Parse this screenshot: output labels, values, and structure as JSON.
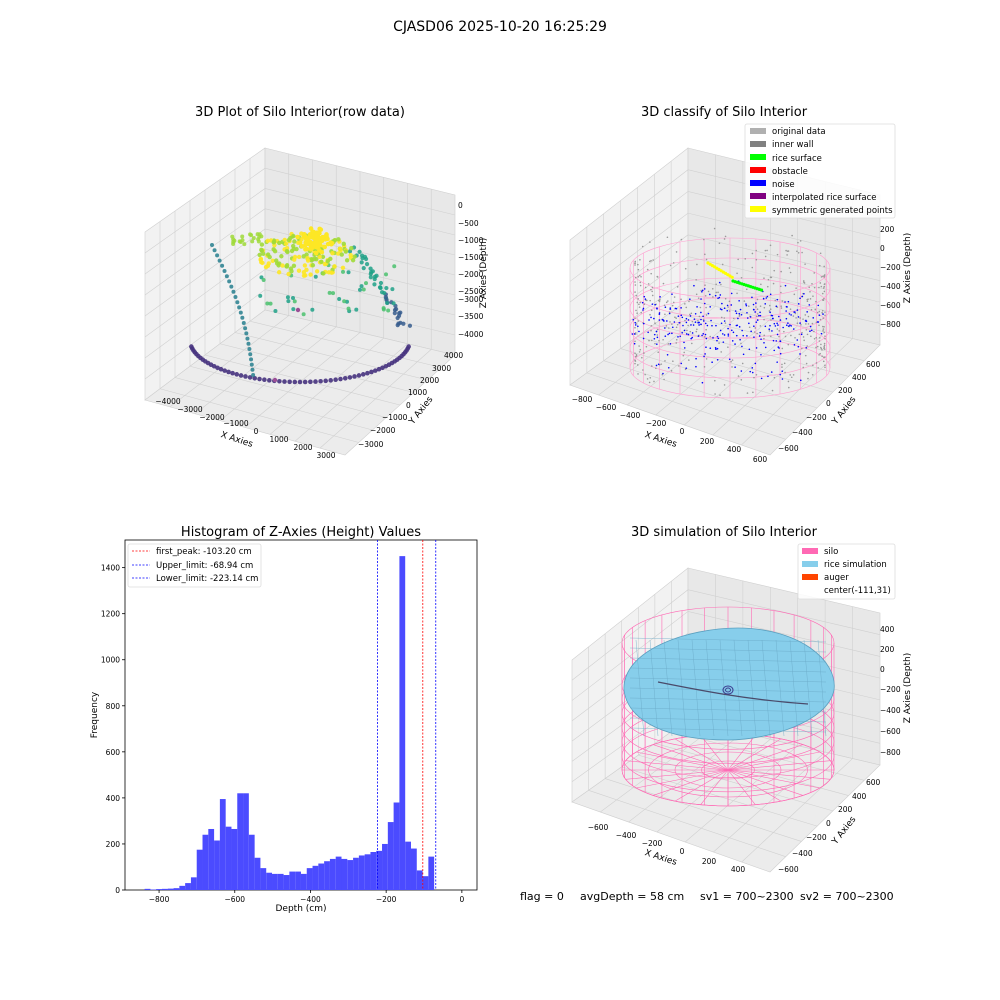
{
  "figure": {
    "suptitle": "CJASD06 2025-10-20 16:25:29",
    "status": {
      "flag": "flag = 0",
      "avg_depth": "avgDepth = 58 cm",
      "sv1": "sv1 = 700~2300",
      "sv2": "sv2 = 700~2300"
    }
  },
  "plots": {
    "raw": {
      "title": "3D Plot of Silo Interior(row data)",
      "xlabel": "X Axies",
      "ylabel": "Y Axies",
      "zlabel": "Z Axies (Depth)",
      "xticks": [
        "−4000",
        "−3000",
        "−2000",
        "−1000",
        "0",
        "1000",
        "2000",
        "3000"
      ],
      "yticks": [
        "4000",
        "3000",
        "2000",
        "1000",
        "0",
        "−1000",
        "−2000",
        "−3000"
      ],
      "zticks": [
        "0",
        "−500",
        "−1000",
        "−1500",
        "−2000",
        "−2500",
        "−3000",
        "−3500",
        "−4000"
      ]
    },
    "classify": {
      "title": "3D classify of Silo Interior",
      "xlabel": "X Axies",
      "ylabel": "Y Axies",
      "zlabel": "Z Axies (Depth)",
      "xticks": [
        "−800",
        "−600",
        "−400",
        "−200",
        "0",
        "200",
        "400",
        "600"
      ],
      "yticks": [
        "600",
        "400",
        "200",
        "0",
        "−200",
        "−400",
        "−600"
      ],
      "zticks": [
        "200",
        "0",
        "−200",
        "−400",
        "−600",
        "−800"
      ],
      "legend": [
        {
          "label": "original data",
          "color": "#b0b0b0"
        },
        {
          "label": "inner wall",
          "color": "#808080"
        },
        {
          "label": "rice surface",
          "color": "#00ff00"
        },
        {
          "label": "obstacle",
          "color": "#ff0000"
        },
        {
          "label": "noise",
          "color": "#0000ff"
        },
        {
          "label": "interpolated rice surface",
          "color": "#800080"
        },
        {
          "label": "symmetric generated points",
          "color": "#ffff00"
        }
      ]
    },
    "simulation": {
      "title": "3D simulation of Silo Interior",
      "xlabel": "X Axies",
      "ylabel": "Y Axies",
      "zlabel": "Z Axies (Depth)",
      "xticks": [
        "−600",
        "−400",
        "−200",
        "0",
        "200",
        "400"
      ],
      "yticks": [
        "600",
        "400",
        "200",
        "0",
        "−200",
        "−400",
        "−600"
      ],
      "zticks": [
        "400",
        "200",
        "0",
        "−200",
        "−400",
        "−600",
        "−800"
      ],
      "legend": [
        {
          "label": "silo",
          "color": "#ff69b4"
        },
        {
          "label": "rice simulation",
          "color": "#87ceeb"
        },
        {
          "label": "auger",
          "color": "#ff4500"
        },
        {
          "label": "center(-111,31)",
          "color": ""
        }
      ]
    }
  },
  "chart_data": {
    "type": "bar",
    "title": "Histogram of Z-Axies (Height) Values",
    "xlabel": "Depth (cm)",
    "ylabel": "Frequency",
    "xlim": [
      -890,
      40
    ],
    "ylim": [
      0,
      1520
    ],
    "xticks": [
      -800,
      -600,
      -400,
      -200,
      0
    ],
    "yticks": [
      0,
      200,
      400,
      600,
      800,
      1000,
      1200,
      1400
    ],
    "bar_color": "#4b4bff",
    "bin_width": 15.3,
    "bins_left": [
      -838.2,
      -822.9,
      -807.6,
      -792.3,
      -777.0,
      -761.7,
      -746.4,
      -731.1,
      -715.8,
      -700.5,
      -685.2,
      -669.9,
      -654.6,
      -639.3,
      -624.0,
      -608.7,
      -593.4,
      -578.1,
      -562.8,
      -547.5,
      -532.2,
      -516.9,
      -501.6,
      -486.3,
      -471.0,
      -455.7,
      -440.4,
      -425.1,
      -409.8,
      -394.5,
      -379.2,
      -363.9,
      -348.6,
      -333.3,
      -318.0,
      -302.7,
      -287.4,
      -272.1,
      -256.8,
      -241.5,
      -226.2,
      -210.9,
      -195.6,
      -180.3,
      -165.0,
      -149.7,
      -134.4,
      -119.1,
      -103.8,
      -88.5,
      -73.2,
      -57.9,
      -42.6,
      -27.3,
      -12.0
    ],
    "counts": [
      5,
      2,
      4,
      5,
      6,
      8,
      18,
      30,
      55,
      175,
      240,
      265,
      215,
      395,
      275,
      265,
      420,
      420,
      240,
      140,
      95,
      75,
      70,
      70,
      65,
      80,
      80,
      70,
      95,
      105,
      115,
      125,
      135,
      145,
      135,
      130,
      140,
      150,
      155,
      165,
      170,
      200,
      295,
      380,
      1450,
      210,
      180,
      85,
      60,
      145,
      0,
      0,
      0,
      0,
      0
    ],
    "lines": [
      {
        "label": "first_peak: -103.20 cm",
        "x": -103.2,
        "color": "#ff0000"
      },
      {
        "label": "Upper_limit: -68.94 cm",
        "x": -68.94,
        "color": "#0000ff"
      },
      {
        "label": "Lower_limit: -223.14 cm",
        "x": -223.14,
        "color": "#0000ff"
      }
    ]
  }
}
